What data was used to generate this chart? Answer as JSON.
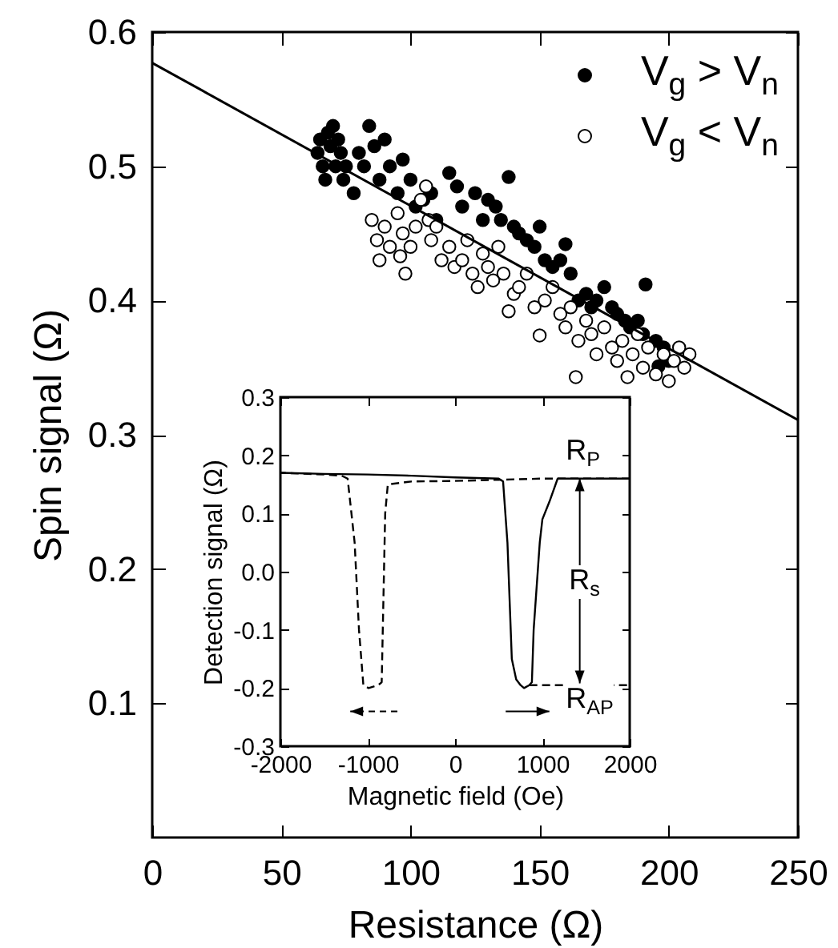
{
  "chart_data": [
    {
      "type": "scatter",
      "xlabel": "Resistance (Ω)",
      "ylabel": "Spin signal (Ω)",
      "xlim": [
        0,
        250
      ],
      "ylim": [
        0,
        0.6
      ],
      "xticks": [
        0,
        50,
        100,
        150,
        200,
        250
      ],
      "yticks": [
        0.1,
        0.2,
        0.3,
        0.4,
        0.5,
        0.6
      ],
      "grid": false,
      "marker": "circle",
      "legend": "top right",
      "series": [
        {
          "name": "V$_{g}$ > V$_{n}$",
          "color": "#000000",
          "x": [
            64,
            65,
            66,
            67,
            68,
            69,
            70,
            71,
            72,
            73,
            74,
            75,
            78,
            80,
            82,
            84,
            86,
            88,
            90,
            92,
            95,
            97,
            100,
            102,
            105,
            108,
            110,
            115,
            118,
            120,
            125,
            128,
            130,
            133,
            135,
            138,
            140,
            142,
            145,
            148,
            150,
            152,
            155,
            158,
            160,
            162,
            165,
            168,
            170,
            172,
            175,
            178,
            180,
            183,
            185,
            188,
            190,
            191,
            195,
            196,
            198,
            200
          ],
          "values": [
            0.51,
            0.52,
            0.5,
            0.49,
            0.525,
            0.515,
            0.53,
            0.5,
            0.52,
            0.51,
            0.49,
            0.5,
            0.48,
            0.51,
            0.5,
            0.53,
            0.515,
            0.49,
            0.52,
            0.5,
            0.48,
            0.505,
            0.49,
            0.47,
            0.475,
            0.48,
            0.46,
            0.495,
            0.485,
            0.47,
            0.48,
            0.46,
            0.475,
            0.47,
            0.46,
            0.492,
            0.455,
            0.45,
            0.445,
            0.44,
            0.455,
            0.43,
            0.425,
            0.43,
            0.442,
            0.42,
            0.4,
            0.405,
            0.395,
            0.4,
            0.41,
            0.395,
            0.39,
            0.385,
            0.38,
            0.385,
            0.375,
            0.412,
            0.37,
            0.351,
            0.365,
            0.355
          ]
        },
        {
          "name": "V$_{g}$ < V$_{n}$",
          "color": "#ffffff",
          "x": [
            85,
            87,
            88,
            90,
            92,
            95,
            96,
            97,
            98,
            100,
            102,
            104,
            106,
            107,
            108,
            110,
            112,
            115,
            117,
            120,
            122,
            124,
            126,
            128,
            130,
            132,
            134,
            136,
            138,
            140,
            142,
            145,
            148,
            150,
            152,
            155,
            158,
            160,
            162,
            164,
            165,
            168,
            170,
            172,
            175,
            178,
            180,
            182,
            184,
            186,
            188,
            190,
            192,
            195,
            198,
            200,
            202,
            204,
            206,
            208
          ],
          "values": [
            0.46,
            0.445,
            0.43,
            0.455,
            0.44,
            0.465,
            0.433,
            0.45,
            0.42,
            0.44,
            0.455,
            0.475,
            0.485,
            0.46,
            0.445,
            0.455,
            0.43,
            0.44,
            0.425,
            0.43,
            0.445,
            0.42,
            0.41,
            0.435,
            0.425,
            0.415,
            0.44,
            0.42,
            0.392,
            0.405,
            0.41,
            0.42,
            0.395,
            0.374,
            0.4,
            0.41,
            0.39,
            0.38,
            0.395,
            0.343,
            0.37,
            0.385,
            0.375,
            0.36,
            0.38,
            0.365,
            0.355,
            0.37,
            0.343,
            0.36,
            0.375,
            0.35,
            0.365,
            0.345,
            0.36,
            0.34,
            0.355,
            0.365,
            0.35,
            0.36
          ]
        },
        {
          "type": "line",
          "marker": "none",
          "color": "#000000",
          "x": [
            0,
            250
          ],
          "values": [
            0.577,
            0.311
          ]
        }
      ]
    },
    {
      "type": "line",
      "xlabel": "Magnetic field (Oe)",
      "ylabel": "Detection signal (Ω)",
      "xlim": [
        -2000,
        2000
      ],
      "ylim": [
        -0.3,
        0.3
      ],
      "xticks": [
        -2000,
        -1000,
        0,
        1000,
        2000
      ],
      "yticks": [
        -0.3,
        -0.2,
        -0.1,
        {
          "value": 0,
          "label": "0.0"
        },
        0.1,
        0.2,
        0.3
      ],
      "grid": false,
      "annotations": [
        "R$_{P}$",
        "R$_{s}$",
        "R$_{AP}$"
      ],
      "series": [
        {
          "color": "#000000",
          "line_style": "solid",
          "x": [
            -2000,
            -1500,
            -1000,
            -500,
            0,
            500,
            550,
            600,
            650,
            700,
            750,
            790,
            850,
            880,
            900,
            970,
            1000,
            1080,
            1175,
            1500,
            2000
          ],
          "values": [
            0.17,
            0.168,
            0.167,
            0.165,
            0.162,
            0.16,
            0.155,
            0.05,
            -0.15,
            -0.185,
            -0.195,
            -0.2,
            -0.195,
            -0.19,
            -0.1,
            0.05,
            0.09,
            0.12,
            0.16,
            0.16,
            0.16
          ]
        },
        {
          "color": "#000000",
          "line_style": "dashed",
          "x": [
            2000,
            1500,
            1000,
            500,
            0,
            -500,
            -770,
            -800,
            -840,
            -880,
            -990,
            -1050,
            -1100,
            -1150,
            -1230,
            -1300,
            -1500,
            -2000
          ],
          "values": [
            0.16,
            0.16,
            0.16,
            0.158,
            0.156,
            0.155,
            0.15,
            0.1,
            -0.19,
            -0.195,
            -0.2,
            -0.195,
            -0.1,
            0.05,
            0.16,
            0.165,
            0.167,
            0.17
          ]
        },
        {
          "color": "#000000",
          "line_style": "dashed",
          "x": [
            850,
            2000
          ],
          "values": [
            -0.195,
            -0.195
          ]
        }
      ]
    }
  ]
}
